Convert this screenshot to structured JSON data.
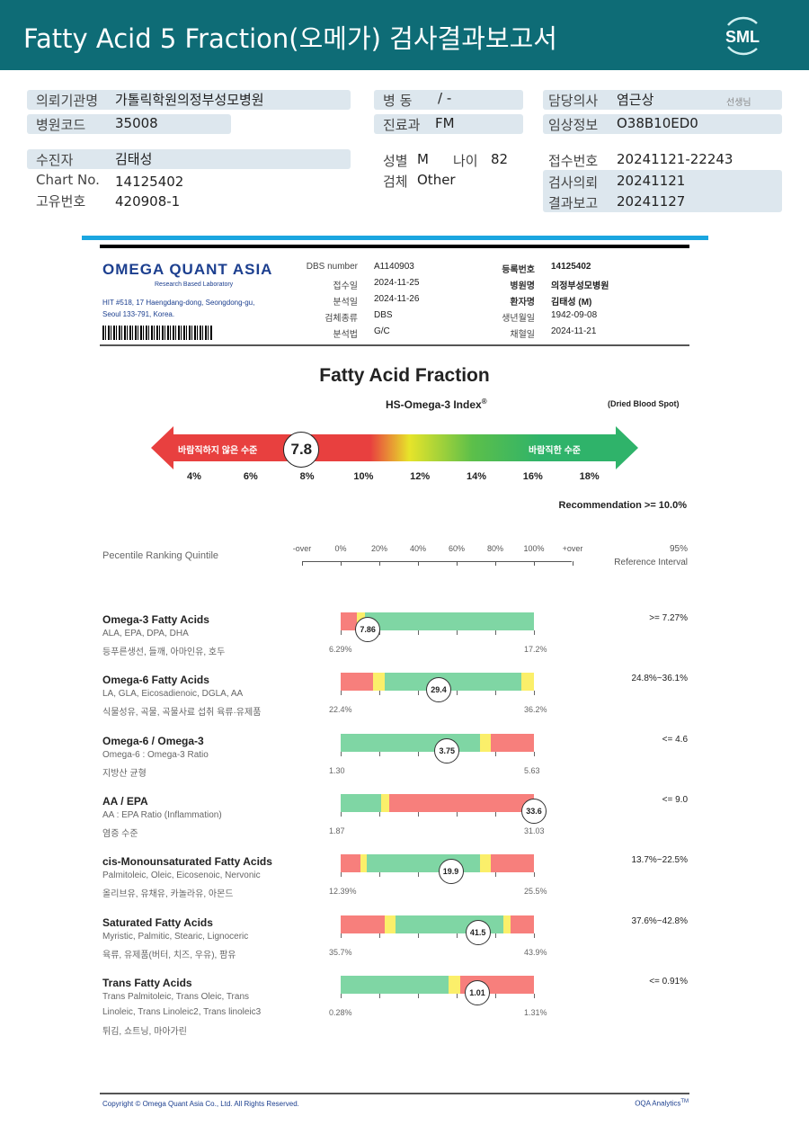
{
  "header": {
    "title": "Fatty Acid 5 Fraction(오메가) 검사결과보고서",
    "logo_text": "SML",
    "bg_color": "#0e6c76"
  },
  "info": {
    "institution_label": "의뢰기관명",
    "institution": "가톨릭학원의정부성모병원",
    "hospital_code_label": "병원코드",
    "hospital_code": "35008",
    "ward_label": "병 동",
    "ward": "/ -",
    "dept_label": "진료과",
    "dept": "FM",
    "doctor_label": "담당의사",
    "doctor": "염근상",
    "doctor_suffix": "선생님",
    "clinical_label": "임상정보",
    "clinical": "O38B10ED0",
    "patient_label": "수진자",
    "patient": "김태성",
    "chart_label": "Chart No.",
    "chart": "14125402",
    "unique_label": "고유번호",
    "unique": "420908-1",
    "sex_label": "성별",
    "sex": "M",
    "age_label": "나이",
    "age": "82",
    "specimen_label": "검체",
    "specimen": "Other",
    "receipt_label": "접수번호",
    "receipt": "20241121-22243",
    "request_label": "검사의뢰",
    "request": "20241121",
    "report_label": "결과보고",
    "report": "20241127"
  },
  "lab": {
    "name": "OMEGA QUANT ASIA",
    "tagline": "Research Based Laboratory",
    "address1": "HIT #518, 17 Haengdang-dong, Seongdong-gu,",
    "address2": "Seoul 133-791, Korea.",
    "left_fields": [
      [
        "DBS number",
        "A1140903"
      ],
      [
        "접수일",
        "2024-11-25"
      ],
      [
        "분석일",
        "2024-11-26"
      ],
      [
        "검체종류",
        "DBS"
      ],
      [
        "분석법",
        "G/C"
      ]
    ],
    "right_fields": [
      [
        "등록번호",
        "14125402"
      ],
      [
        "병원명",
        "의정부성모병원"
      ],
      [
        "환자명",
        "김태성 (M)"
      ],
      [
        "생년월일",
        "1942-09-08"
      ],
      [
        "채혈일",
        "2024-11-21"
      ]
    ]
  },
  "index": {
    "title": "Fatty Acid Fraction",
    "subtitle": "HS-Omega-3 Index",
    "sup": "®",
    "note": "(Dried Blood Spot)",
    "value": 7.8,
    "value_label": "7.8",
    "bad_label": "바람직하지 않은 수준",
    "good_label": "바람직한 수준",
    "ticks": [
      "4%",
      "6%",
      "8%",
      "10%",
      "12%",
      "14%",
      "16%",
      "18%"
    ],
    "recommendation": "Recommendation  >= 10.0%"
  },
  "quintile": {
    "label": "Pecentile Ranking Quintile",
    "ticks": [
      "-over",
      "0%",
      "20%",
      "40%",
      "60%",
      "80%",
      "100%",
      "+over"
    ],
    "ref_line1": "95%",
    "ref_line2": "Reference Interval"
  },
  "colors": {
    "red": "#f77f7c",
    "yellow": "#fbef6a",
    "green": "#7fd6a4"
  },
  "rows": [
    {
      "title": "Omega-3 Fatty Acids",
      "sub1": "ALA, EPA, DPA, DHA",
      "sub2": "등푸른생선, 들깨, 아마인유, 호두",
      "value": "7.86",
      "percentile": 14,
      "min": "6.29%",
      "max": "17.2%",
      "ref": ">= 7.27%",
      "segments": [
        [
          "red",
          0,
          8.4
        ],
        [
          "yellow",
          8.4,
          12.5
        ],
        [
          "green",
          12.5,
          100
        ]
      ]
    },
    {
      "title": "Omega-6 Fatty Acids",
      "sub1": "LA, GLA, Eicosadienoic, DGLA, AA",
      "sub2": "식물성유, 곡물, 곡물사료 섭취 육류·유제품",
      "value": "29.4",
      "percentile": 50.7,
      "min": "22.4%",
      "max": "36.2%",
      "ref": "24.8%~36.1%",
      "segments": [
        [
          "red",
          0,
          16.7
        ],
        [
          "yellow",
          16.7,
          22.8
        ],
        [
          "green",
          22.8,
          93.5
        ],
        [
          "yellow",
          93.5,
          100
        ]
      ]
    },
    {
      "title": "Omega-6 / Omega-3",
      "sub1": "Omega-6 : Omega-3 Ratio",
      "sub2": "지방산 균형",
      "value": "3.75",
      "percentile": 55,
      "min": "1.30",
      "max": "5.63",
      "ref": "<= 4.6",
      "segments": [
        [
          "green",
          0,
          72
        ],
        [
          "yellow",
          72,
          77.6
        ],
        [
          "red",
          77.6,
          100
        ]
      ]
    },
    {
      "title": "AA / EPA",
      "sub1": "AA : EPA Ratio (Inflammation)",
      "sub2": "염증 수준",
      "value": "33.6",
      "percentile": 100,
      "min": "1.87",
      "max": "31.03",
      "ref": "<= 9.0",
      "segments": [
        [
          "green",
          0,
          21
        ],
        [
          "yellow",
          21,
          25
        ],
        [
          "red",
          25,
          100
        ]
      ]
    },
    {
      "title": "cis-Monounsaturated Fatty Acids",
      "sub1": "Palmitoleic, Oleic, Eicosenoic, Nervonic",
      "sub2": "올리브유, 유채유, 카놀라유, 아몬드",
      "value": "19.9",
      "percentile": 57,
      "min": "12.39%",
      "max": "25.5%",
      "ref": "13.7%~22.5%",
      "segments": [
        [
          "red",
          0,
          10
        ],
        [
          "yellow",
          10,
          13.5
        ],
        [
          "green",
          13.5,
          72
        ],
        [
          "yellow",
          72,
          77.5
        ],
        [
          "red",
          77.5,
          100
        ]
      ]
    },
    {
      "title": "Saturated Fatty Acids",
      "sub1": "Myristic, Palmitic, Stearic, Lignoceric",
      "sub2": "육류, 유제품(버터, 치즈, 우유), 팜유",
      "value": "41.5",
      "percentile": 71,
      "min": "35.7%",
      "max": "43.9%",
      "ref": "37.6%~42.8%",
      "segments": [
        [
          "red",
          0,
          23
        ],
        [
          "yellow",
          23,
          28.5
        ],
        [
          "green",
          28.5,
          84
        ],
        [
          "yellow",
          84,
          88
        ],
        [
          "red",
          88,
          100
        ]
      ]
    },
    {
      "title": "Trans Fatty Acids",
      "sub1": "Trans Palmitoleic, Trans Oleic, Trans",
      "sub1b": "Linoleic, Trans Linoleic2, Trans linoleic3",
      "sub2": "튀김, 쇼트닝, 마아가린",
      "value": "1.01",
      "percentile": 70.7,
      "min": "0.28%",
      "max": "1.31%",
      "ref": "<= 0.91%",
      "segments": [
        [
          "green",
          0,
          56
        ],
        [
          "yellow",
          56,
          62
        ],
        [
          "red",
          62,
          100
        ]
      ]
    }
  ],
  "footer": {
    "copyright": "Copyright © Omega Quant Asia Co., Ltd.  All Rights Reserved.",
    "brand": "OQA Analytics",
    "brand_sup": "TM"
  }
}
